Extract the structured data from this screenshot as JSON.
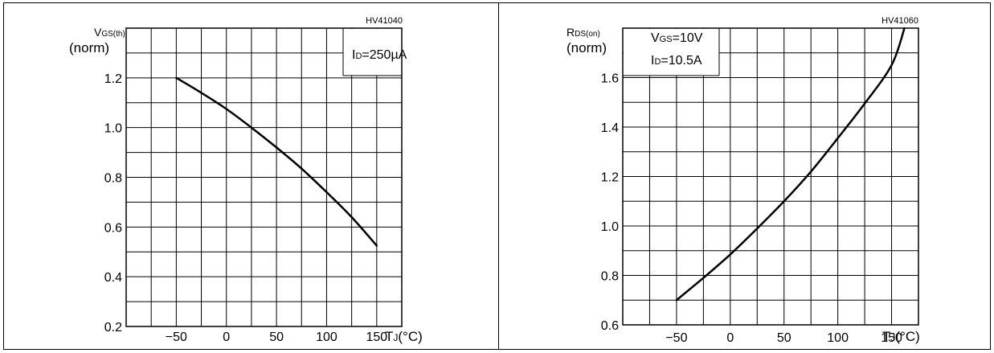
{
  "chart_data": [
    {
      "type": "line",
      "figure_id": "HV41040",
      "y_label_main": "V",
      "y_label_sub": "GS(th)",
      "y_label_unit": "(norm)",
      "x_label_main": "T",
      "x_label_sub": "J",
      "x_label_unit": "(°C)",
      "x_ticks": [
        -50,
        0,
        50,
        100,
        150
      ],
      "y_ticks": [
        0.2,
        0.4,
        0.6,
        0.8,
        1.0,
        1.2
      ],
      "y_tick_labels": [
        "0.2",
        "0.4",
        "0.6",
        "0.8",
        "1.0",
        "1.2"
      ],
      "x_tick_labels": [
        "−50",
        "0",
        "50",
        "100",
        "150"
      ],
      "xlim": [
        -100,
        175
      ],
      "ylim": [
        0.2,
        1.4
      ],
      "grid": true,
      "annotations": [
        {
          "main": "I",
          "sub": "D",
          "rest": "=250µA"
        }
      ],
      "series": [
        {
          "x": [
            -50,
            -25,
            0,
            25,
            50,
            75,
            100,
            125,
            150
          ],
          "y": [
            1.2,
            1.14,
            1.075,
            1.0,
            0.92,
            0.835,
            0.74,
            0.64,
            0.525
          ]
        }
      ]
    },
    {
      "type": "line",
      "figure_id": "HV41060",
      "y_label_main": "R",
      "y_label_sub": "DS(on)",
      "y_label_unit": "(norm)",
      "x_label_main": "T",
      "x_label_sub": "J",
      "x_label_unit": "(°C)",
      "x_ticks": [
        -50,
        0,
        50,
        100,
        150
      ],
      "y_ticks": [
        0.6,
        0.8,
        1.0,
        1.2,
        1.4,
        1.6
      ],
      "y_tick_labels": [
        "0.6",
        "0.8",
        "1.0",
        "1.2",
        "1.4",
        "1.6"
      ],
      "x_tick_labels": [
        "−50",
        "0",
        "50",
        "100",
        "150"
      ],
      "xlim": [
        -100,
        175
      ],
      "ylim": [
        0.6,
        1.8
      ],
      "grid": true,
      "annotations": [
        {
          "main": "V",
          "sub": "GS",
          "rest": "=10V"
        },
        {
          "main": "I",
          "sub": "D",
          "rest": "=10.5A"
        }
      ],
      "series": [
        {
          "x": [
            -50,
            -25,
            0,
            25,
            50,
            75,
            100,
            125,
            150,
            162
          ],
          "y": [
            0.7,
            0.79,
            0.885,
            0.99,
            1.1,
            1.22,
            1.355,
            1.495,
            1.65,
            1.8
          ]
        }
      ]
    }
  ]
}
